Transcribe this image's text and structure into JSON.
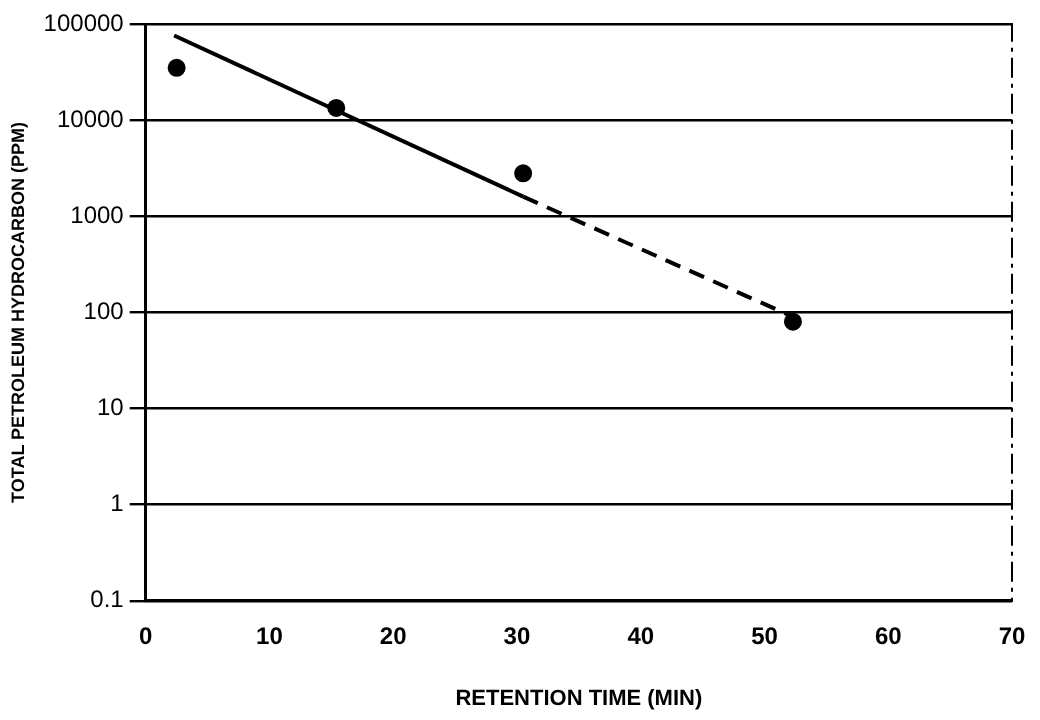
{
  "chart_data": {
    "type": "scatter",
    "xlabel": "RETENTION TIME (MIN)",
    "ylabel": "TOTAL PETROLEUM HYDROCARBON (PPM)",
    "log": "y",
    "xlim": [
      0,
      70
    ],
    "xticks": [
      0,
      10,
      20,
      30,
      40,
      50,
      60,
      70
    ],
    "ylim": [
      0.1,
      100000
    ],
    "yticks": [
      0.1,
      1,
      10,
      100,
      1000,
      10000,
      100000
    ],
    "grid": "y",
    "legend": false,
    "series": [
      {
        "color": "#000000",
        "marker": "circle",
        "x": [
          2.5,
          15.4,
          30.5,
          52.3
        ],
        "values": [
          35000,
          13400,
          2800,
          80
        ]
      },
      {
        "type": "line",
        "color": "#000000",
        "marker": "none",
        "line_style": "solid",
        "x": [
          2.3,
          30.5
        ],
        "values": [
          76000,
          1600
        ]
      },
      {
        "type": "line",
        "color": "#000000",
        "marker": "none",
        "line_style": "dashed",
        "x": [
          30.5,
          52.3
        ],
        "values": [
          1600,
          90
        ]
      }
    ]
  }
}
